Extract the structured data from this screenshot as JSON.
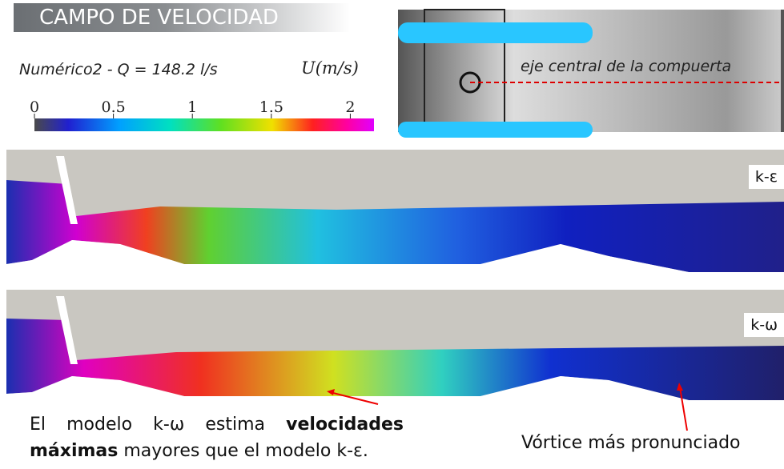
{
  "header": {
    "title": "CAMPO DE VELOCIDAD"
  },
  "legend": {
    "case": "Numérico2 - Q = 148.2 l/s",
    "variable": "U(m/s)",
    "range": [
      0,
      2.15
    ],
    "ticks": [
      0,
      0.5,
      1,
      1.5,
      2
    ]
  },
  "gate_view": {
    "label": "eje central de la compuerta"
  },
  "panels": [
    {
      "label": "k-ε"
    },
    {
      "label": "k-ω"
    }
  ],
  "notes": {
    "main": {
      "before": "El modelo k-ω estima ",
      "bold": "velocidades máximas",
      "after": " mayores que el modelo k-ε."
    },
    "vortex": "Vórtice más pronunciado"
  }
}
